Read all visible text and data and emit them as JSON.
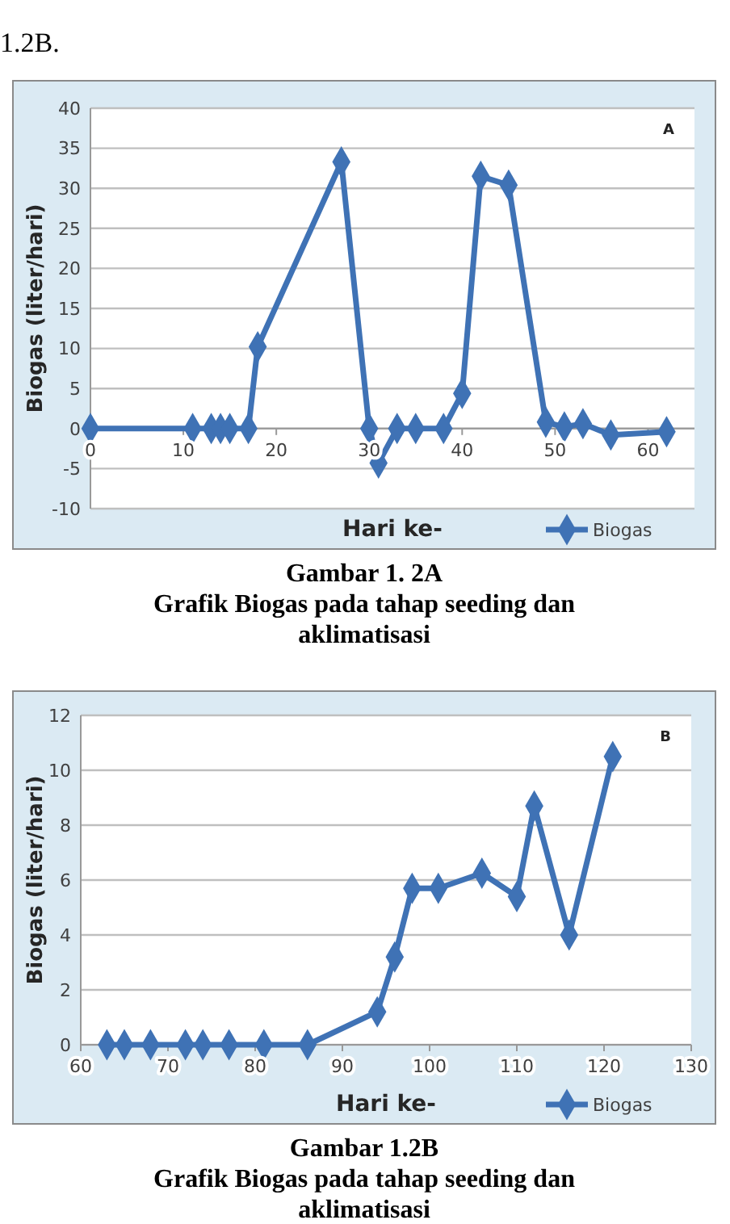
{
  "chart_data": [
    {
      "type": "line",
      "title": "Gambar 1. 2A",
      "subtitle": "Grafik Biogas pada tahap seeding dan aklimatisasi",
      "xlabel": "Hari ke-",
      "ylabel": "Biogas (liter/hari)",
      "annotations": [
        "A",
        "1.2B."
      ],
      "series": [
        {
          "name": "Biogas",
          "color": "#3f72b5",
          "x": [
            0,
            11,
            13,
            14,
            15,
            17,
            18,
            27,
            30,
            31,
            33,
            35,
            38,
            40,
            42,
            45,
            49,
            51,
            53,
            56,
            62
          ],
          "values": [
            0,
            0,
            0,
            0,
            0,
            0,
            10.2,
            33.3,
            0,
            -4.3,
            0,
            0,
            0,
            4.4,
            31.5,
            30.4,
            0.8,
            0.2,
            0.6,
            -0.8,
            -0.4
          ]
        }
      ],
      "xlim": [
        0,
        65
      ],
      "xticks": [
        0,
        10,
        20,
        30,
        40,
        50,
        60
      ],
      "ylim": [
        -10,
        40
      ],
      "yticks": [
        -10,
        -5,
        0,
        5,
        10,
        15,
        20,
        25,
        30,
        35,
        40
      ],
      "grid": "y",
      "legend": "bottom right",
      "marker": "diamond",
      "line_style": "solid"
    },
    {
      "type": "line",
      "title": "Gambar 1.2B",
      "subtitle": "Grafik Biogas pada tahap seeding dan aklimatisasi",
      "xlabel": "Hari ke-",
      "ylabel": "Biogas (liter/hari)",
      "annotations": [
        "B"
      ],
      "series": [
        {
          "name": "Biogas",
          "color": "#3f72b5",
          "x": [
            63,
            65,
            68,
            72,
            74,
            77,
            81,
            86,
            94,
            96,
            98,
            101,
            106,
            110,
            112,
            116,
            121
          ],
          "values": [
            0,
            0,
            0,
            0,
            0,
            0,
            0,
            0,
            1.2,
            3.2,
            5.7,
            5.7,
            6.25,
            5.4,
            8.7,
            4.0,
            10.5
          ]
        }
      ],
      "xlim": [
        60,
        130
      ],
      "xticks": [
        60,
        70,
        80,
        90,
        100,
        110,
        120,
        130
      ],
      "ylim": [
        0,
        12
      ],
      "yticks": [
        0,
        2,
        4,
        6,
        8,
        10,
        12
      ],
      "grid": "y",
      "legend": "bottom right",
      "marker": "diamond",
      "line_style": "solid"
    }
  ]
}
